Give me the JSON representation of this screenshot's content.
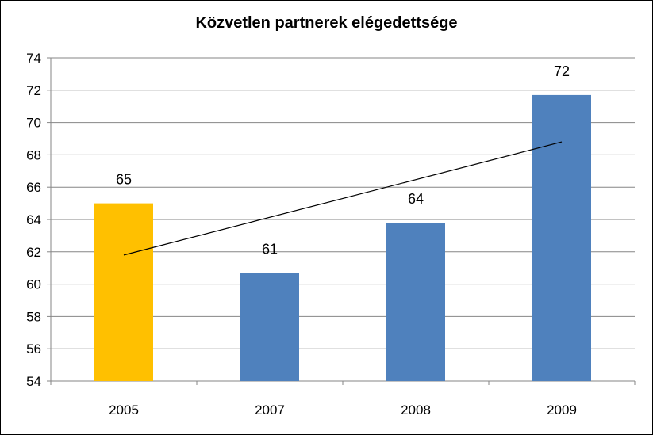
{
  "chart_data": {
    "type": "bar",
    "title": "Közvetlen partnerek elégedettsége",
    "categories": [
      "2005",
      "2007",
      "2008",
      "2009"
    ],
    "values": [
      65,
      60.7,
      63.8,
      71.7
    ],
    "data_labels": [
      "65",
      "61",
      "64",
      "72"
    ],
    "bar_colors": [
      "#FFC000",
      "#4F81BD",
      "#4F81BD",
      "#4F81BD"
    ],
    "ylim": [
      54,
      74
    ],
    "yticks": [
      54,
      56,
      58,
      60,
      62,
      64,
      66,
      68,
      70,
      72,
      74
    ],
    "trendline": {
      "type": "linear",
      "start": 61.8,
      "end": 68.8,
      "color": "#000000"
    },
    "grid": true,
    "legend": "none",
    "xlabel": "",
    "ylabel": ""
  }
}
